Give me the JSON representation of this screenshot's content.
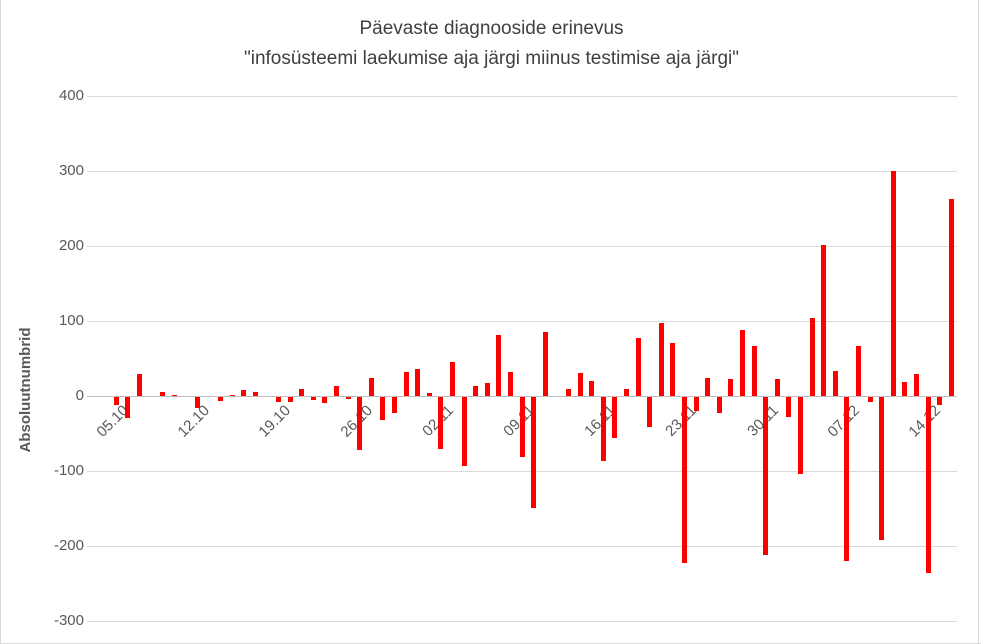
{
  "chart_data": {
    "type": "bar",
    "title": "Päevaste diagnooside erinevus",
    "subtitle": "\"infosüsteemi laekumise aja järgi miinus testimise aja järgi\"",
    "ylabel": "Absoluutnumbrid",
    "xlabel": "",
    "bar_color": "#ff0000",
    "grid": true,
    "legend": false,
    "ylim": [
      -300,
      400
    ],
    "y_ticks": [
      400,
      300,
      200,
      100,
      0,
      -100,
      -200,
      -300
    ],
    "x_tick_labels": [
      "05.10",
      "12.10",
      "19.10",
      "26.10",
      "02.11",
      "09.11",
      "16.11",
      "23.11",
      "30.11",
      "07.12",
      "14.12"
    ],
    "x_tick_step_days": 7,
    "categories": [
      "05.10",
      "06.10",
      "07.10",
      "08.10",
      "09.10",
      "10.10",
      "11.10",
      "12.10",
      "13.10",
      "14.10",
      "15.10",
      "16.10",
      "17.10",
      "18.10",
      "19.10",
      "20.10",
      "21.10",
      "22.10",
      "23.10",
      "24.10",
      "25.10",
      "26.10",
      "27.10",
      "28.10",
      "29.10",
      "30.10",
      "31.10",
      "01.11",
      "02.11",
      "03.11",
      "04.11",
      "05.11",
      "06.11",
      "07.11",
      "08.11",
      "09.11",
      "10.11",
      "11.11",
      "12.11",
      "13.11",
      "14.11",
      "15.11",
      "16.11",
      "17.11",
      "18.11",
      "19.11",
      "20.11",
      "21.11",
      "22.11",
      "23.11",
      "24.11",
      "25.11",
      "26.11",
      "27.11",
      "28.11",
      "29.11",
      "30.11",
      "01.12",
      "02.12",
      "03.12",
      "04.12",
      "05.12",
      "06.12",
      "07.12",
      "08.12",
      "09.12",
      "10.12",
      "11.12",
      "12.12",
      "13.12",
      "14.12",
      "15.12",
      "16.12"
    ],
    "values": [
      -11,
      -28,
      29,
      0,
      5,
      2,
      0,
      -14,
      0,
      -5,
      2,
      8,
      6,
      0,
      -6,
      -6,
      9,
      -4,
      -8,
      13,
      -2,
      -70,
      24,
      -30,
      -21,
      32,
      36,
      4,
      -69,
      46,
      -92,
      13,
      18,
      82,
      32,
      -80,
      -148,
      85,
      0,
      9,
      31,
      20,
      -85,
      -55,
      10,
      78,
      -40,
      98,
      71,
      -221,
      -18,
      24,
      -21,
      23,
      88,
      67,
      -211,
      23,
      -27,
      -102,
      104,
      202,
      33,
      -218,
      67,
      -6,
      -190,
      300,
      19,
      29,
      -234,
      -11,
      263
    ],
    "colors": {
      "title": "#404040",
      "tick_labels": "#595959",
      "gridline": "#d9d9d9",
      "zero_axis": "#bfbfbf",
      "background": "#ffffff"
    }
  }
}
